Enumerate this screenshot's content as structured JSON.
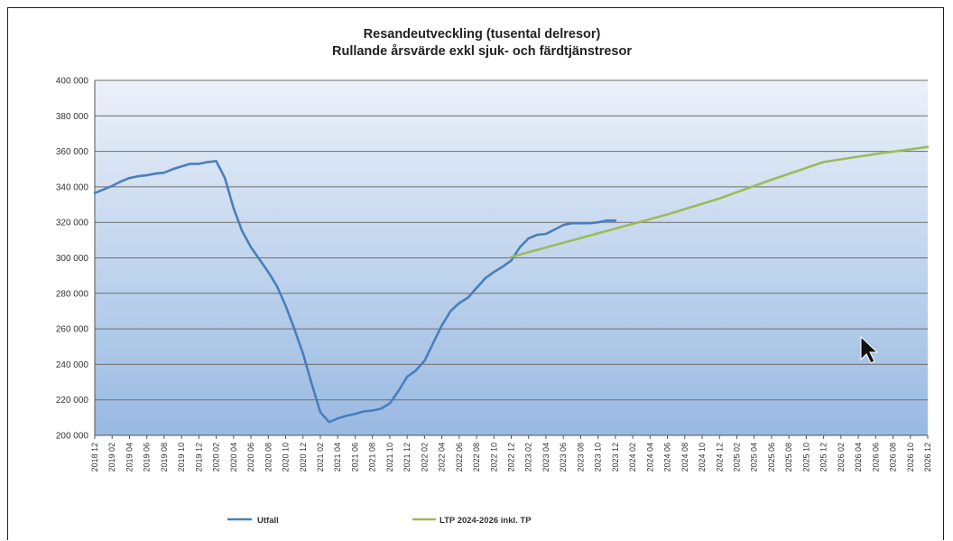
{
  "chart_data": {
    "type": "line",
    "title": "Resandeutveckling (tusental delresor)",
    "subtitle": "Rullande årsvärde exkl sjuk- och färdtjänstresor",
    "xlabel": "",
    "ylabel": "",
    "ylim": [
      200000,
      400000
    ],
    "y_ticks": [
      "200 000",
      "220 000",
      "240 000",
      "260 000",
      "280 000",
      "300 000",
      "320 000",
      "340 000",
      "360 000",
      "380 000",
      "400 000"
    ],
    "y_tick_values": [
      200000,
      220000,
      240000,
      260000,
      280000,
      300000,
      320000,
      340000,
      360000,
      380000,
      400000
    ],
    "categories": [
      "2018 12",
      "2019 02",
      "2019 04",
      "2019 06",
      "2019 08",
      "2019 10",
      "2019 12",
      "2020 02",
      "2020 04",
      "2020 06",
      "2020 08",
      "2020 10",
      "2020 12",
      "2021 02",
      "2021 04",
      "2021 06",
      "2021 08",
      "2021 10",
      "2021 12",
      "2022 02",
      "2022 04",
      "2022 06",
      "2022 08",
      "2022 10",
      "2022 12",
      "2023 02",
      "2023 04",
      "2023 06",
      "2023 08",
      "2023 10",
      "2023 12",
      "2024 02",
      "2024 04",
      "2024 06",
      "2024 08",
      "2024 10",
      "2024 12",
      "2025 02",
      "2025 04",
      "2025 06",
      "2025 08",
      "2025 10",
      "2025 12",
      "2026 02",
      "2026 04",
      "2026 06",
      "2026 08",
      "2026 10",
      "2026 12"
    ],
    "grid": true,
    "legend_position": "bottom",
    "series": [
      {
        "name": "Utfall",
        "color": "#4a7ebb",
        "x": [
          "2018 12",
          "2019 01",
          "2019 02",
          "2019 03",
          "2019 04",
          "2019 05",
          "2019 06",
          "2019 07",
          "2019 08",
          "2019 09",
          "2019 10",
          "2019 11",
          "2019 12",
          "2020 01",
          "2020 02",
          "2020 03",
          "2020 04",
          "2020 05",
          "2020 06",
          "2020 07",
          "2020 08",
          "2020 09",
          "2020 10",
          "2020 11",
          "2020 12",
          "2021 01",
          "2021 02",
          "2021 03",
          "2021 04",
          "2021 05",
          "2021 06",
          "2021 07",
          "2021 08",
          "2021 09",
          "2021 10",
          "2021 11",
          "2021 12",
          "2022 01",
          "2022 02",
          "2022 03",
          "2022 04",
          "2022 05",
          "2022 06",
          "2022 07",
          "2022 08",
          "2022 09",
          "2022 10",
          "2022 11",
          "2022 12",
          "2023 01",
          "2023 02",
          "2023 03",
          "2023 04",
          "2023 05",
          "2023 06",
          "2023 07",
          "2023 08",
          "2023 09",
          "2023 10",
          "2023 11",
          "2023 12"
        ],
        "values": [
          336500,
          338500,
          340500,
          343000,
          345000,
          346000,
          346500,
          347500,
          348000,
          350000,
          351500,
          353000,
          353000,
          354000,
          354500,
          345000,
          328000,
          315000,
          306000,
          299000,
          292000,
          284000,
          273000,
          260000,
          246000,
          229000,
          213000,
          207500,
          209500,
          211000,
          212000,
          213500,
          214000,
          215000,
          218000,
          225000,
          233000,
          236500,
          242000,
          252000,
          262000,
          270000,
          274500,
          277500,
          283000,
          288500,
          292000,
          295000,
          298500,
          306000,
          311000,
          313000,
          313500,
          316000,
          318500,
          319500,
          319500,
          319500,
          320000,
          321000,
          321000
        ]
      },
      {
        "name": "LTP 2024-2026 inkl. TP",
        "color": "#9bbb59",
        "x": [
          "2022 12",
          "2023 06",
          "2023 12",
          "2024 06",
          "2024 12",
          "2025 06",
          "2025 12",
          "2026 06",
          "2026 12"
        ],
        "values": [
          300500,
          308500,
          316500,
          324500,
          333500,
          344000,
          354000,
          358500,
          362500
        ]
      }
    ]
  }
}
